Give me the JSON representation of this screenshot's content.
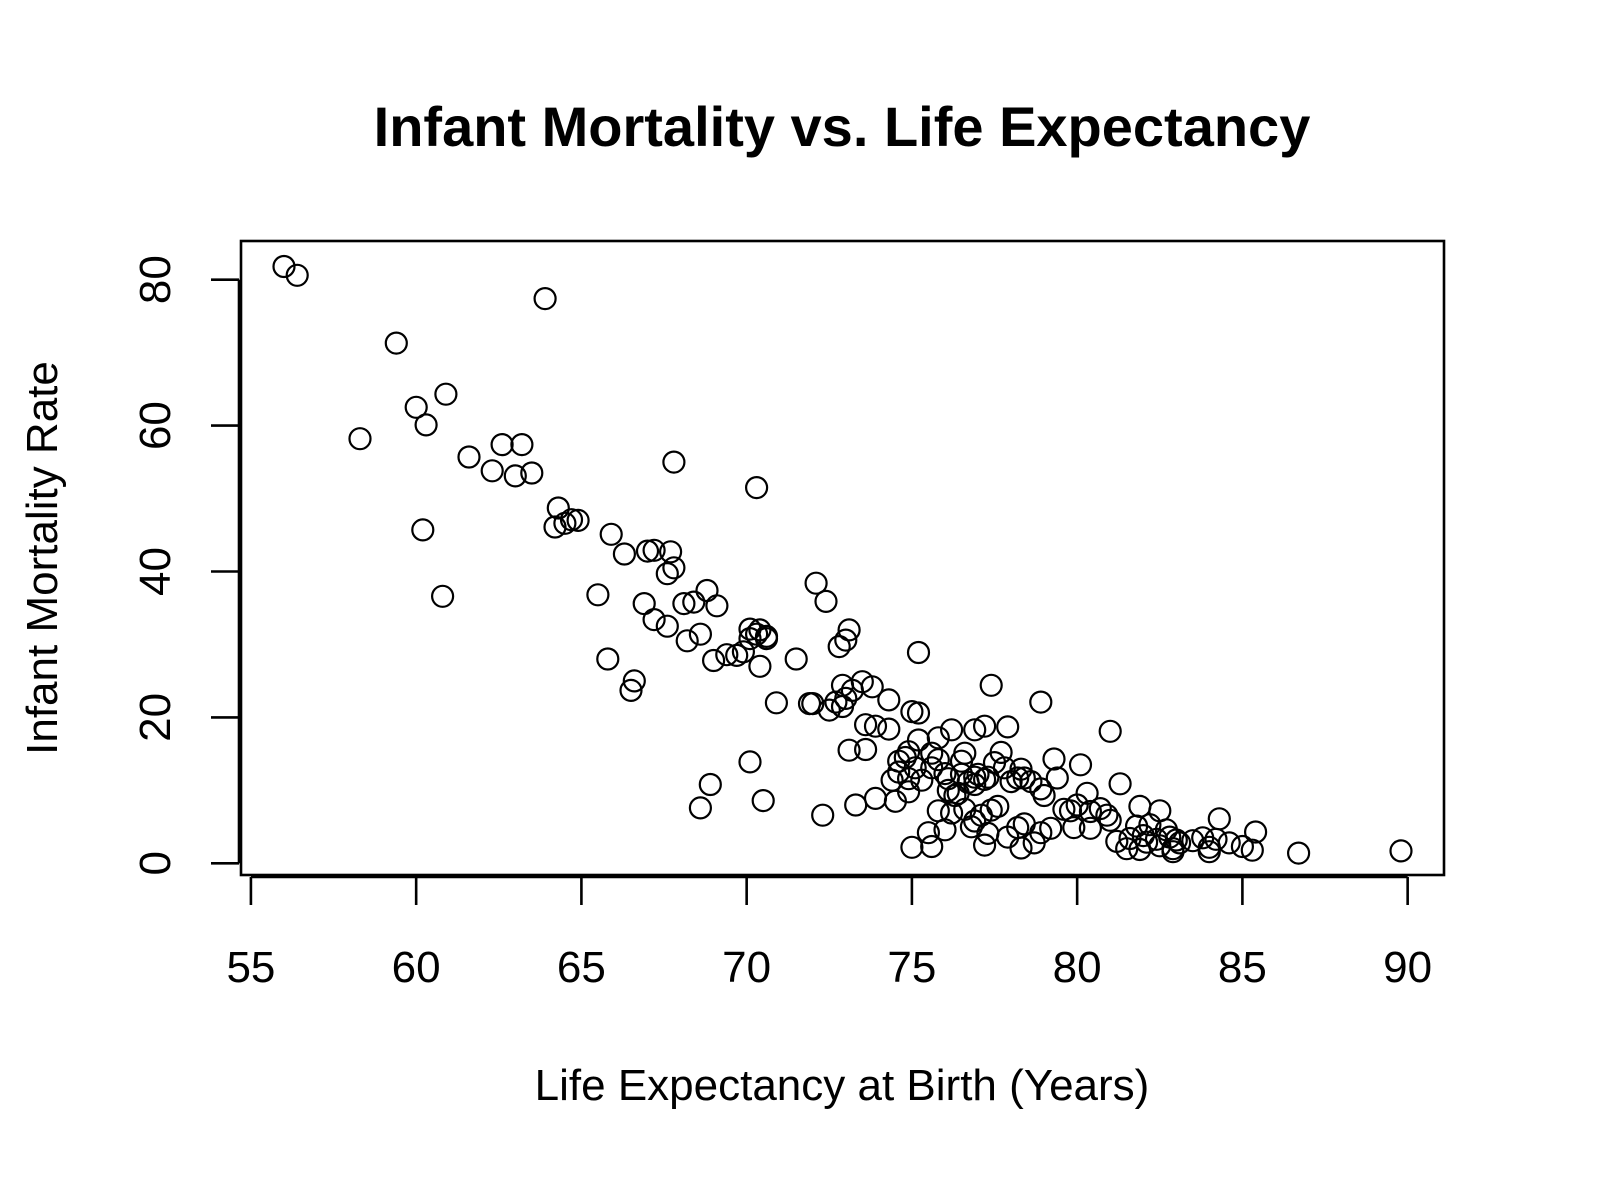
{
  "chart_data": {
    "type": "scatter",
    "title": "Infant Mortality vs. Life Expectancy",
    "xlabel": "Life Expectancy at Birth (Years)",
    "ylabel": "Infant Mortality Rate",
    "xlim": [
      54.7,
      91.1
    ],
    "ylim": [
      -1.6,
      85.3
    ],
    "x_ticks": [
      55,
      60,
      65,
      70,
      75,
      80,
      85,
      90
    ],
    "y_ticks": [
      0,
      20,
      40,
      60,
      80
    ],
    "grid": false,
    "marker": "open-circle",
    "points": [
      [
        56.0,
        81.8
      ],
      [
        56.4,
        80.6
      ],
      [
        59.4,
        71.3
      ],
      [
        63.9,
        77.4
      ],
      [
        58.3,
        58.2
      ],
      [
        60.0,
        62.5
      ],
      [
        60.3,
        60.1
      ],
      [
        60.9,
        64.3
      ],
      [
        61.6,
        55.7
      ],
      [
        62.3,
        53.8
      ],
      [
        62.6,
        57.4
      ],
      [
        63.0,
        53.1
      ],
      [
        63.2,
        57.4
      ],
      [
        63.5,
        53.5
      ],
      [
        64.3,
        48.7
      ],
      [
        64.2,
        46.1
      ],
      [
        64.5,
        46.6
      ],
      [
        64.7,
        47.1
      ],
      [
        64.9,
        47.0
      ],
      [
        60.2,
        45.7
      ],
      [
        60.8,
        36.6
      ],
      [
        65.5,
        36.8
      ],
      [
        65.9,
        45.1
      ],
      [
        66.3,
        42.4
      ],
      [
        67.0,
        42.8
      ],
      [
        67.2,
        42.9
      ],
      [
        67.6,
        39.7
      ],
      [
        67.8,
        40.5
      ],
      [
        67.7,
        42.7
      ],
      [
        67.8,
        55.0
      ],
      [
        66.9,
        35.6
      ],
      [
        67.2,
        33.4
      ],
      [
        67.6,
        32.5
      ],
      [
        68.1,
        35.6
      ],
      [
        68.4,
        35.8
      ],
      [
        68.8,
        37.4
      ],
      [
        69.1,
        35.3
      ],
      [
        68.2,
        30.5
      ],
      [
        68.6,
        31.4
      ],
      [
        69.0,
        27.8
      ],
      [
        65.8,
        28.0
      ],
      [
        66.5,
        23.7
      ],
      [
        66.6,
        25.0
      ],
      [
        69.4,
        28.6
      ],
      [
        69.7,
        28.5
      ],
      [
        69.9,
        29.0
      ],
      [
        70.1,
        30.8
      ],
      [
        70.1,
        32.1
      ],
      [
        70.3,
        31.4
      ],
      [
        70.4,
        32.0
      ],
      [
        70.6,
        30.8
      ],
      [
        70.6,
        31.1
      ],
      [
        70.4,
        27.0
      ],
      [
        70.3,
        51.5
      ],
      [
        70.9,
        22.0
      ],
      [
        70.1,
        13.9
      ],
      [
        70.5,
        8.6
      ],
      [
        68.9,
        10.8
      ],
      [
        68.6,
        7.6
      ],
      [
        71.5,
        28.0
      ],
      [
        71.9,
        21.9
      ],
      [
        72.0,
        21.9
      ],
      [
        72.1,
        38.4
      ],
      [
        72.4,
        35.9
      ],
      [
        72.5,
        21.0
      ],
      [
        72.7,
        22.1
      ],
      [
        72.9,
        21.5
      ],
      [
        73.0,
        22.6
      ],
      [
        72.8,
        29.7
      ],
      [
        73.0,
        30.6
      ],
      [
        73.1,
        32.0
      ],
      [
        72.9,
        24.4
      ],
      [
        73.2,
        23.7
      ],
      [
        73.5,
        24.9
      ],
      [
        73.8,
        24.2
      ],
      [
        73.1,
        15.5
      ],
      [
        73.6,
        15.6
      ],
      [
        73.6,
        19.0
      ],
      [
        73.9,
        18.8
      ],
      [
        74.3,
        18.4
      ],
      [
        74.3,
        22.4
      ],
      [
        72.3,
        6.6
      ],
      [
        73.3,
        8.0
      ],
      [
        73.9,
        8.9
      ],
      [
        74.4,
        11.4
      ],
      [
        74.6,
        12.5
      ],
      [
        74.6,
        14.0
      ],
      [
        74.8,
        14.5
      ],
      [
        74.9,
        15.3
      ],
      [
        74.9,
        11.6
      ],
      [
        75.1,
        13.1
      ],
      [
        75.2,
        16.9
      ],
      [
        75.0,
        20.8
      ],
      [
        75.2,
        20.6
      ],
      [
        75.2,
        28.9
      ],
      [
        74.9,
        9.8
      ],
      [
        74.5,
        8.5
      ],
      [
        75.3,
        11.4
      ],
      [
        75.6,
        13.1
      ],
      [
        75.6,
        15.1
      ],
      [
        75.8,
        14.2
      ],
      [
        75.8,
        17.2
      ],
      [
        76.0,
        12.3
      ],
      [
        76.1,
        10.0
      ],
      [
        76.1,
        11.6
      ],
      [
        76.3,
        9.3
      ],
      [
        76.4,
        9.6
      ],
      [
        76.5,
        12.2
      ],
      [
        76.5,
        14.0
      ],
      [
        76.6,
        15.1
      ],
      [
        76.7,
        11.1
      ],
      [
        76.9,
        11.8
      ],
      [
        76.9,
        10.8
      ],
      [
        76.2,
        18.3
      ],
      [
        76.9,
        18.3
      ],
      [
        77.2,
        18.8
      ],
      [
        77.4,
        24.4
      ],
      [
        77.0,
        12.2
      ],
      [
        77.2,
        11.5
      ],
      [
        77.3,
        11.8
      ],
      [
        77.5,
        13.8
      ],
      [
        77.7,
        15.2
      ],
      [
        77.8,
        13.1
      ],
      [
        78.0,
        11.2
      ],
      [
        78.2,
        11.7
      ],
      [
        78.3,
        12.9
      ],
      [
        78.4,
        11.7
      ],
      [
        78.6,
        11.2
      ],
      [
        78.9,
        10.2
      ],
      [
        79.0,
        9.3
      ],
      [
        77.9,
        18.7
      ],
      [
        78.9,
        22.1
      ],
      [
        79.3,
        14.3
      ],
      [
        79.4,
        11.7
      ],
      [
        79.6,
        7.4
      ],
      [
        79.8,
        7.2
      ],
      [
        80.0,
        8.0
      ],
      [
        80.1,
        13.5
      ],
      [
        80.3,
        9.6
      ],
      [
        80.4,
        7.1
      ],
      [
        80.7,
        7.5
      ],
      [
        80.9,
        6.6
      ],
      [
        81.0,
        18.1
      ],
      [
        81.3,
        10.9
      ],
      [
        75.0,
        2.2
      ],
      [
        75.6,
        2.3
      ],
      [
        75.5,
        4.2
      ],
      [
        75.8,
        7.2
      ],
      [
        76.0,
        4.6
      ],
      [
        76.2,
        6.9
      ],
      [
        76.6,
        7.4
      ],
      [
        76.8,
        5.0
      ],
      [
        76.9,
        5.8
      ],
      [
        77.1,
        6.6
      ],
      [
        77.3,
        4.1
      ],
      [
        77.4,
        7.3
      ],
      [
        77.6,
        7.8
      ],
      [
        77.9,
        3.6
      ],
      [
        78.2,
        4.9
      ],
      [
        78.3,
        2.1
      ],
      [
        78.4,
        5.4
      ],
      [
        78.7,
        2.8
      ],
      [
        78.9,
        4.2
      ],
      [
        79.2,
        4.8
      ],
      [
        79.9,
        4.9
      ],
      [
        80.4,
        4.8
      ],
      [
        81.0,
        5.9
      ],
      [
        81.2,
        3.0
      ],
      [
        77.2,
        2.5
      ],
      [
        81.5,
        2.0
      ],
      [
        81.6,
        3.4
      ],
      [
        81.8,
        5.1
      ],
      [
        81.9,
        1.9
      ],
      [
        81.9,
        7.8
      ],
      [
        82.0,
        3.8
      ],
      [
        82.1,
        2.9
      ],
      [
        82.2,
        5.3
      ],
      [
        82.4,
        3.3
      ],
      [
        82.5,
        2.4
      ],
      [
        82.5,
        7.2
      ],
      [
        82.7,
        4.6
      ],
      [
        82.8,
        3.6
      ],
      [
        82.9,
        2.0
      ],
      [
        82.9,
        1.6
      ],
      [
        83.0,
        3.2
      ],
      [
        83.1,
        2.8
      ],
      [
        83.5,
        3.1
      ],
      [
        83.8,
        3.5
      ],
      [
        84.0,
        2.2
      ],
      [
        84.0,
        1.6
      ],
      [
        84.2,
        3.3
      ],
      [
        84.3,
        6.1
      ],
      [
        84.6,
        2.8
      ],
      [
        85.0,
        2.3
      ],
      [
        85.3,
        1.8
      ],
      [
        85.4,
        4.3
      ],
      [
        86.7,
        1.4
      ],
      [
        89.8,
        1.7
      ]
    ]
  }
}
